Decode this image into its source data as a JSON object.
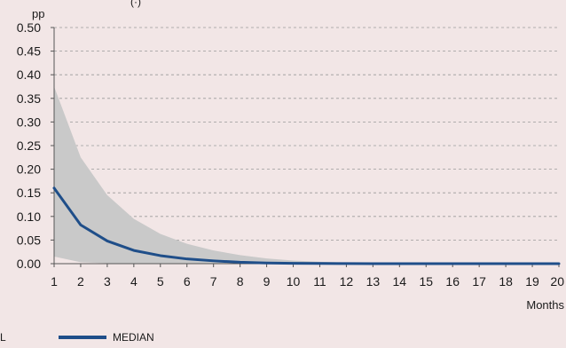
{
  "colors": {
    "background": "#f2e6e6",
    "band": "#c9c9c9",
    "median": "#1f4e89",
    "grid": "#9a9a9a",
    "axis": "#555555"
  },
  "chart_data": {
    "type": "area",
    "top_text_fragment": "(·)",
    "ylabel": "pp",
    "xlabel": "Months",
    "ylim": [
      0,
      0.5
    ],
    "yticks": [
      "0.00",
      "0.05",
      "0.10",
      "0.15",
      "0.20",
      "0.25",
      "0.30",
      "0.35",
      "0.40",
      "0.45",
      "0.50"
    ],
    "x": [
      1,
      2,
      3,
      4,
      5,
      6,
      7,
      8,
      9,
      10,
      11,
      12,
      13,
      14,
      15,
      16,
      17,
      18,
      19,
      20
    ],
    "grid": "horizontal dashed",
    "series": [
      {
        "name": "MEDIAN",
        "style": "line",
        "values": [
          0.16,
          0.082,
          0.048,
          0.028,
          0.017,
          0.01,
          0.006,
          0.003,
          0.0015,
          0.0008,
          0.0004,
          0.0002,
          0.0001,
          0.0001,
          0.0001,
          0.0001,
          0.0001,
          0.0001,
          0.0001,
          0.0001
        ]
      },
      {
        "style": "band",
        "legend_label_fragment": "L",
        "upper": [
          0.375,
          0.225,
          0.145,
          0.095,
          0.063,
          0.042,
          0.028,
          0.018,
          0.011,
          0.0065,
          0.004,
          0.0025,
          0.0015,
          0.001,
          0.0006,
          0.0004,
          0.0003,
          0.0002,
          0.0001,
          0.0001
        ],
        "lower": [
          0.015,
          0.003,
          0.001,
          0.0005,
          0.0002,
          0.0001,
          0,
          0,
          0,
          0,
          0,
          0,
          0,
          0,
          0,
          0,
          0,
          0,
          0,
          0
        ]
      }
    ],
    "legend": {
      "placement": "bottom",
      "items": [
        "L",
        "MEDIAN"
      ]
    }
  }
}
